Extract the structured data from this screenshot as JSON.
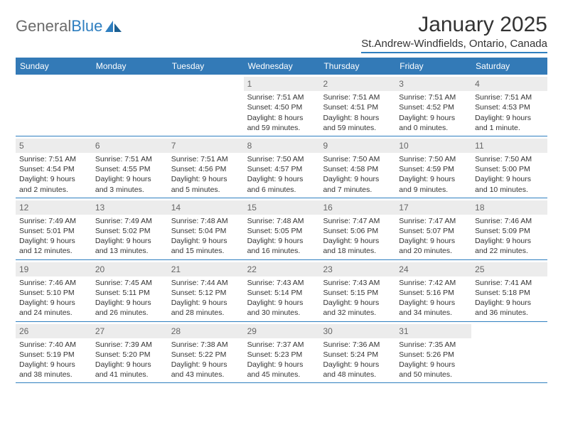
{
  "logo": {
    "text_gray": "General",
    "text_blue": "Blue"
  },
  "title": "January 2025",
  "subtitle": "St.Andrew-Windfields, Ontario, Canada",
  "colors": {
    "header_bg": "#337ab7",
    "header_text": "#ffffff",
    "accent_line": "#2f7fc0",
    "daynum_bg": "#ececec",
    "daynum_text": "#666666",
    "body_text": "#333333",
    "logo_gray": "#6b6b6b",
    "logo_blue": "#2f7fc0"
  },
  "day_names": [
    "Sunday",
    "Monday",
    "Tuesday",
    "Wednesday",
    "Thursday",
    "Friday",
    "Saturday"
  ],
  "weeks": [
    [
      {
        "n": "",
        "sr": "",
        "ss": "",
        "dl": "",
        "empty": true
      },
      {
        "n": "",
        "sr": "",
        "ss": "",
        "dl": "",
        "empty": true
      },
      {
        "n": "",
        "sr": "",
        "ss": "",
        "dl": "",
        "empty": true
      },
      {
        "n": "1",
        "sr": "Sunrise: 7:51 AM",
        "ss": "Sunset: 4:50 PM",
        "dl": "Daylight: 8 hours and 59 minutes."
      },
      {
        "n": "2",
        "sr": "Sunrise: 7:51 AM",
        "ss": "Sunset: 4:51 PM",
        "dl": "Daylight: 8 hours and 59 minutes."
      },
      {
        "n": "3",
        "sr": "Sunrise: 7:51 AM",
        "ss": "Sunset: 4:52 PM",
        "dl": "Daylight: 9 hours and 0 minutes."
      },
      {
        "n": "4",
        "sr": "Sunrise: 7:51 AM",
        "ss": "Sunset: 4:53 PM",
        "dl": "Daylight: 9 hours and 1 minute."
      }
    ],
    [
      {
        "n": "5",
        "sr": "Sunrise: 7:51 AM",
        "ss": "Sunset: 4:54 PM",
        "dl": "Daylight: 9 hours and 2 minutes."
      },
      {
        "n": "6",
        "sr": "Sunrise: 7:51 AM",
        "ss": "Sunset: 4:55 PM",
        "dl": "Daylight: 9 hours and 3 minutes."
      },
      {
        "n": "7",
        "sr": "Sunrise: 7:51 AM",
        "ss": "Sunset: 4:56 PM",
        "dl": "Daylight: 9 hours and 5 minutes."
      },
      {
        "n": "8",
        "sr": "Sunrise: 7:50 AM",
        "ss": "Sunset: 4:57 PM",
        "dl": "Daylight: 9 hours and 6 minutes."
      },
      {
        "n": "9",
        "sr": "Sunrise: 7:50 AM",
        "ss": "Sunset: 4:58 PM",
        "dl": "Daylight: 9 hours and 7 minutes."
      },
      {
        "n": "10",
        "sr": "Sunrise: 7:50 AM",
        "ss": "Sunset: 4:59 PM",
        "dl": "Daylight: 9 hours and 9 minutes."
      },
      {
        "n": "11",
        "sr": "Sunrise: 7:50 AM",
        "ss": "Sunset: 5:00 PM",
        "dl": "Daylight: 9 hours and 10 minutes."
      }
    ],
    [
      {
        "n": "12",
        "sr": "Sunrise: 7:49 AM",
        "ss": "Sunset: 5:01 PM",
        "dl": "Daylight: 9 hours and 12 minutes."
      },
      {
        "n": "13",
        "sr": "Sunrise: 7:49 AM",
        "ss": "Sunset: 5:02 PM",
        "dl": "Daylight: 9 hours and 13 minutes."
      },
      {
        "n": "14",
        "sr": "Sunrise: 7:48 AM",
        "ss": "Sunset: 5:04 PM",
        "dl": "Daylight: 9 hours and 15 minutes."
      },
      {
        "n": "15",
        "sr": "Sunrise: 7:48 AM",
        "ss": "Sunset: 5:05 PM",
        "dl": "Daylight: 9 hours and 16 minutes."
      },
      {
        "n": "16",
        "sr": "Sunrise: 7:47 AM",
        "ss": "Sunset: 5:06 PM",
        "dl": "Daylight: 9 hours and 18 minutes."
      },
      {
        "n": "17",
        "sr": "Sunrise: 7:47 AM",
        "ss": "Sunset: 5:07 PM",
        "dl": "Daylight: 9 hours and 20 minutes."
      },
      {
        "n": "18",
        "sr": "Sunrise: 7:46 AM",
        "ss": "Sunset: 5:09 PM",
        "dl": "Daylight: 9 hours and 22 minutes."
      }
    ],
    [
      {
        "n": "19",
        "sr": "Sunrise: 7:46 AM",
        "ss": "Sunset: 5:10 PM",
        "dl": "Daylight: 9 hours and 24 minutes."
      },
      {
        "n": "20",
        "sr": "Sunrise: 7:45 AM",
        "ss": "Sunset: 5:11 PM",
        "dl": "Daylight: 9 hours and 26 minutes."
      },
      {
        "n": "21",
        "sr": "Sunrise: 7:44 AM",
        "ss": "Sunset: 5:12 PM",
        "dl": "Daylight: 9 hours and 28 minutes."
      },
      {
        "n": "22",
        "sr": "Sunrise: 7:43 AM",
        "ss": "Sunset: 5:14 PM",
        "dl": "Daylight: 9 hours and 30 minutes."
      },
      {
        "n": "23",
        "sr": "Sunrise: 7:43 AM",
        "ss": "Sunset: 5:15 PM",
        "dl": "Daylight: 9 hours and 32 minutes."
      },
      {
        "n": "24",
        "sr": "Sunrise: 7:42 AM",
        "ss": "Sunset: 5:16 PM",
        "dl": "Daylight: 9 hours and 34 minutes."
      },
      {
        "n": "25",
        "sr": "Sunrise: 7:41 AM",
        "ss": "Sunset: 5:18 PM",
        "dl": "Daylight: 9 hours and 36 minutes."
      }
    ],
    [
      {
        "n": "26",
        "sr": "Sunrise: 7:40 AM",
        "ss": "Sunset: 5:19 PM",
        "dl": "Daylight: 9 hours and 38 minutes."
      },
      {
        "n": "27",
        "sr": "Sunrise: 7:39 AM",
        "ss": "Sunset: 5:20 PM",
        "dl": "Daylight: 9 hours and 41 minutes."
      },
      {
        "n": "28",
        "sr": "Sunrise: 7:38 AM",
        "ss": "Sunset: 5:22 PM",
        "dl": "Daylight: 9 hours and 43 minutes."
      },
      {
        "n": "29",
        "sr": "Sunrise: 7:37 AM",
        "ss": "Sunset: 5:23 PM",
        "dl": "Daylight: 9 hours and 45 minutes."
      },
      {
        "n": "30",
        "sr": "Sunrise: 7:36 AM",
        "ss": "Sunset: 5:24 PM",
        "dl": "Daylight: 9 hours and 48 minutes."
      },
      {
        "n": "31",
        "sr": "Sunrise: 7:35 AM",
        "ss": "Sunset: 5:26 PM",
        "dl": "Daylight: 9 hours and 50 minutes."
      },
      {
        "n": "",
        "sr": "",
        "ss": "",
        "dl": "",
        "empty": true
      }
    ]
  ]
}
